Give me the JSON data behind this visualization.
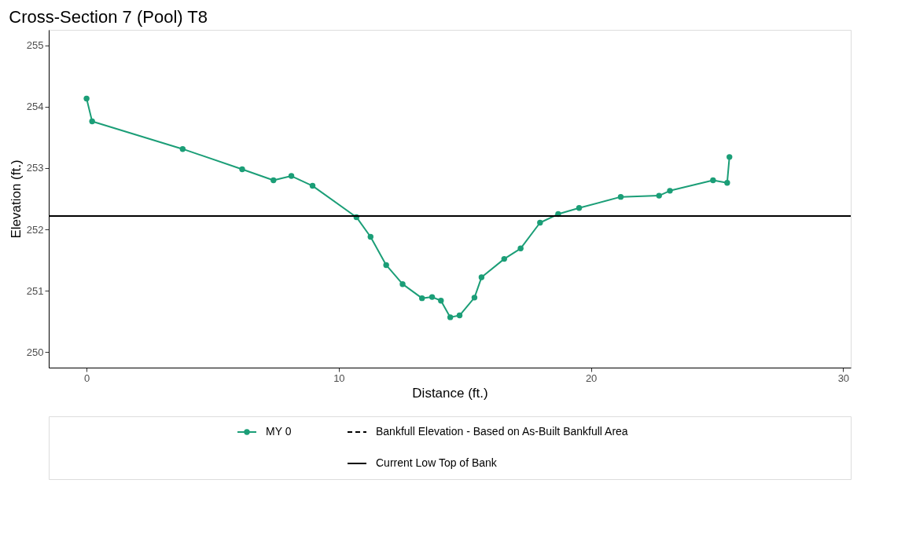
{
  "chart_data": {
    "type": "line",
    "title": "Cross-Section 7 (Pool) T8",
    "xlabel": "Distance (ft.)",
    "ylabel": "Elevation (ft.)",
    "x": [
      0,
      0.22,
      3.81,
      6.17,
      7.41,
      8.12,
      8.96,
      10.7,
      11.26,
      11.88,
      12.53,
      13.3,
      13.7,
      14.05,
      14.42,
      14.79,
      15.38,
      15.66,
      16.56,
      17.21,
      17.98,
      18.7,
      19.53,
      21.18,
      22.7,
      23.13,
      24.84,
      25.4,
      25.49
    ],
    "series": [
      {
        "name": "MY 0",
        "color": "#1b9e77",
        "values": [
          254.13,
          253.76,
          253.31,
          252.98,
          252.8,
          252.87,
          252.71,
          252.2,
          251.88,
          251.42,
          251.11,
          250.88,
          250.9,
          250.84,
          250.57,
          250.6,
          250.89,
          251.22,
          251.52,
          251.69,
          252.11,
          252.25,
          252.35,
          252.53,
          252.55,
          252.63,
          252.8,
          252.76,
          253.18
        ]
      }
    ],
    "ref_lines": [
      {
        "axis": "y",
        "value": 252.22,
        "label": "Current Low Top of Bank",
        "color": "#000000",
        "line_style": "solid"
      }
    ],
    "annotations": [
      "Bankfull Elevation - Based on As-Built Bankfull Area"
    ],
    "marker": "circle",
    "line_style": "solid",
    "grid": false,
    "legend": "bottom",
    "xlim": [
      -1.5,
      30.3
    ],
    "xticks": [
      0,
      10,
      20,
      30
    ],
    "ylim": [
      249.75,
      255.25
    ],
    "yticks": [
      250,
      251,
      252,
      253,
      254,
      255
    ]
  }
}
